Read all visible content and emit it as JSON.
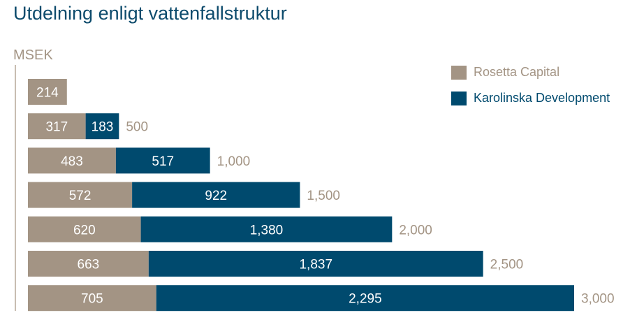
{
  "chart_data": {
    "type": "bar",
    "orientation": "horizontal",
    "stacked": true,
    "title": "Utdelning enligt vattenfallstruktur",
    "ylabel": "MSEK",
    "xlim": [
      0,
      3000
    ],
    "colors": {
      "rosetta": "#a39484",
      "karolinska": "#004a6e"
    },
    "series": [
      {
        "name": "Rosetta Capital",
        "values": [
          214,
          317,
          483,
          572,
          620,
          663,
          705
        ],
        "labels": [
          "214",
          "317",
          "483",
          "572",
          "620",
          "663",
          "705"
        ]
      },
      {
        "name": "Karolinska Development",
        "values": [
          0,
          183,
          517,
          922,
          1380,
          1837,
          2295
        ],
        "labels": [
          "",
          "183",
          "517",
          "922",
          "1,380",
          "1,837",
          "2,295"
        ]
      }
    ],
    "totals": [
      "",
      "500",
      "1,000",
      "1,500",
      "2,000",
      "2,500",
      "3,000"
    ],
    "legend": "top-right"
  }
}
